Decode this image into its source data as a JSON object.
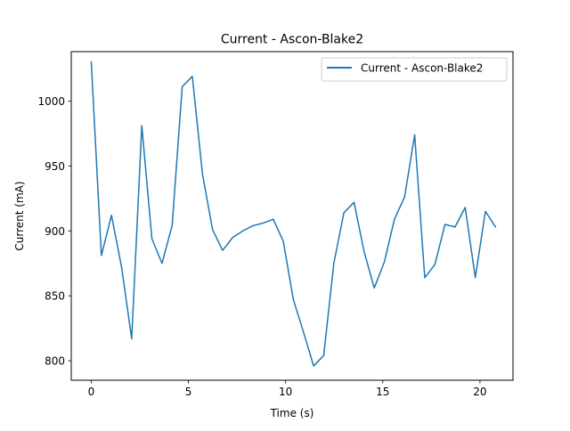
{
  "chart_data": {
    "type": "line",
    "title": "Current - Ascon-Blake2",
    "xlabel": "Time (s)",
    "ylabel": "Current (mA)",
    "xlim": [
      -1.03,
      21.7
    ],
    "ylim": [
      785,
      1038
    ],
    "xticks": [
      0,
      5,
      10,
      15,
      20
    ],
    "yticks": [
      800,
      850,
      900,
      950,
      1000
    ],
    "xtick_labels": [
      "0",
      "5",
      "10",
      "15",
      "20"
    ],
    "ytick_labels": [
      "800",
      "850",
      "900",
      "950",
      "1000"
    ],
    "legend_position": "top-right",
    "grid": false,
    "series": [
      {
        "name": "Current - Ascon-Blake2",
        "color": "#1f77b4",
        "x": [
          0.0,
          0.52,
          1.04,
          1.56,
          2.08,
          2.6,
          3.12,
          3.64,
          4.16,
          4.68,
          5.2,
          5.72,
          6.24,
          6.76,
          7.28,
          7.8,
          8.32,
          8.84,
          9.36,
          9.88,
          10.4,
          10.92,
          11.44,
          11.96,
          12.48,
          13.0,
          13.52,
          14.04,
          14.56,
          15.08,
          15.6,
          16.12,
          16.64,
          17.16,
          17.68,
          18.2,
          18.72,
          19.24,
          19.76,
          20.28,
          20.8
        ],
        "y": [
          1030,
          881,
          912,
          872,
          817,
          981,
          894,
          875,
          904,
          1011,
          1019,
          944,
          901,
          885,
          895,
          900,
          904,
          906,
          909,
          892,
          847,
          822,
          796,
          804,
          875,
          914,
          922,
          884,
          856,
          876,
          909,
          926,
          974,
          864,
          874,
          905,
          903,
          918,
          864,
          915,
          903
        ]
      }
    ]
  }
}
